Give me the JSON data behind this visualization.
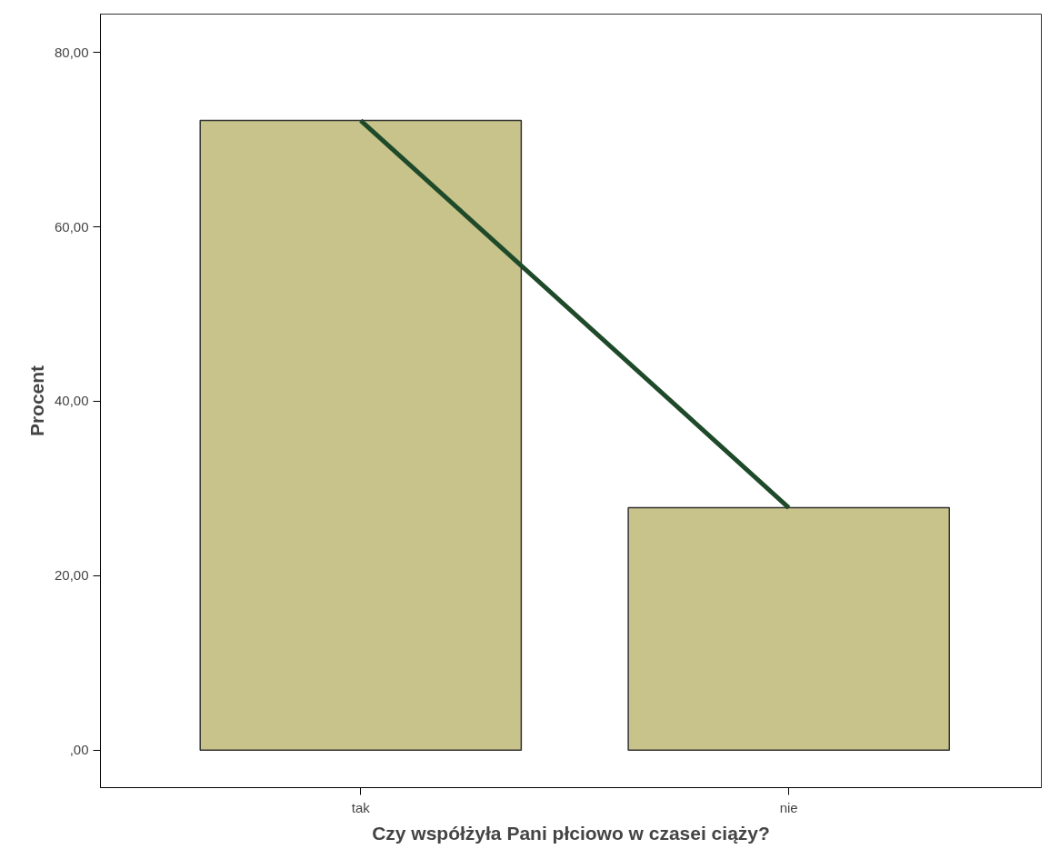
{
  "chart_data": {
    "type": "bar",
    "xlabel": "Czy współżyła Pani płciowo w czasei ciąży?",
    "ylabel": "Procent",
    "categories": [
      "tak",
      "nie"
    ],
    "series": [
      {
        "color": "#c8c38b",
        "values": [
          72.2,
          27.8
        ]
      },
      {
        "type": "line",
        "color": "#1f4a2a",
        "values": [
          72.2,
          27.8
        ]
      }
    ],
    "ylim": [
      -4.3,
      84.4
    ],
    "yticks": [
      {
        "value": 0,
        "label": ",00"
      },
      {
        "value": 20,
        "label": "20,00"
      },
      {
        "value": 40,
        "label": "40,00"
      },
      {
        "value": 60,
        "label": "60,00"
      },
      {
        "value": 80,
        "label": "80,00"
      }
    ],
    "grid": false
  }
}
